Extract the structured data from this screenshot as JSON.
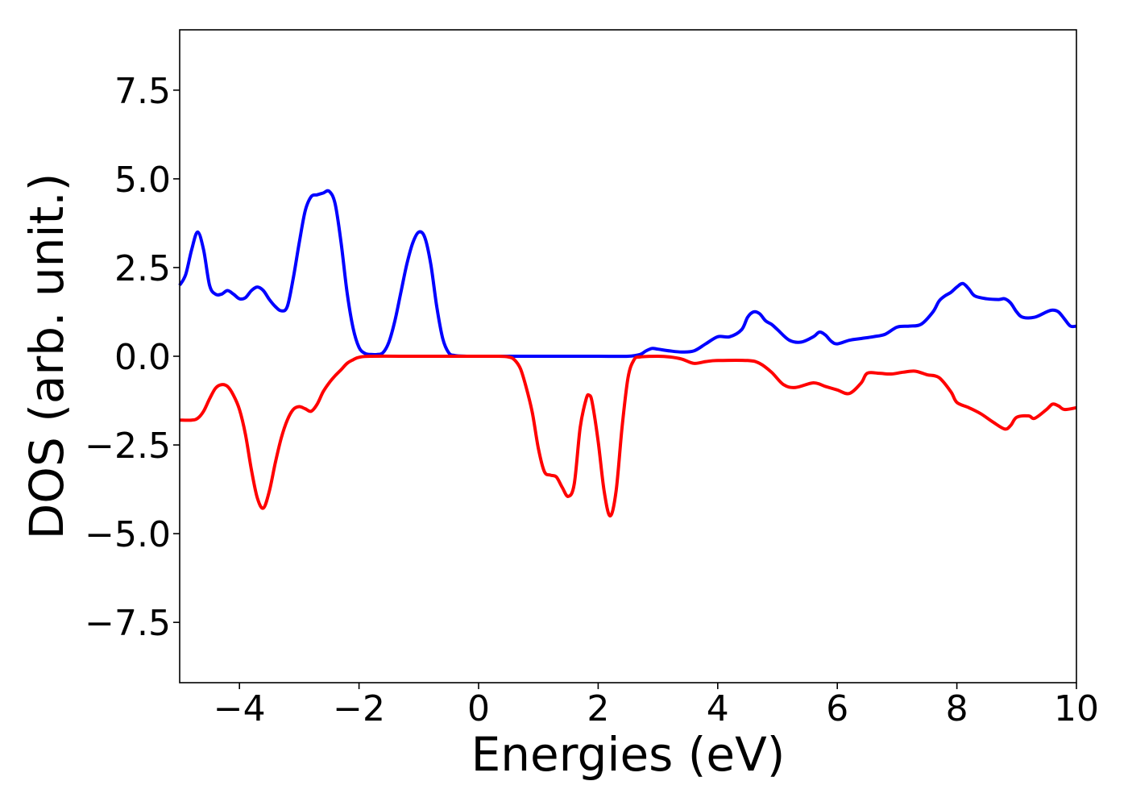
{
  "chart_data": {
    "type": "line",
    "title": "",
    "xlabel": "Energies (eV)",
    "ylabel": "DOS (arb. unit.)",
    "xlim": [
      -5,
      10
    ],
    "ylim": [
      -9.2,
      9.2
    ],
    "xticks": [
      -4,
      -2,
      0,
      2,
      4,
      6,
      8,
      10
    ],
    "xtick_labels": [
      "−4",
      "−2",
      "0",
      "2",
      "4",
      "6",
      "8",
      "10"
    ],
    "yticks": [
      7.5,
      5.0,
      2.5,
      0.0,
      -2.5,
      -5.0,
      -7.5
    ],
    "ytick_labels": [
      "7.5",
      "5.0",
      "2.5",
      "0.0",
      "−2.5",
      "−5.0",
      "−7.5"
    ],
    "grid": false,
    "legend": "none",
    "series": [
      {
        "color": "#0000ff",
        "points": [
          [
            -5.0,
            2.0
          ],
          [
            -4.9,
            2.3
          ],
          [
            -4.8,
            3.0
          ],
          [
            -4.7,
            3.5
          ],
          [
            -4.6,
            3.0
          ],
          [
            -4.5,
            2.0
          ],
          [
            -4.4,
            1.75
          ],
          [
            -4.3,
            1.75
          ],
          [
            -4.2,
            1.85
          ],
          [
            -4.1,
            1.75
          ],
          [
            -4.0,
            1.62
          ],
          [
            -3.9,
            1.65
          ],
          [
            -3.8,
            1.85
          ],
          [
            -3.7,
            1.95
          ],
          [
            -3.6,
            1.85
          ],
          [
            -3.5,
            1.6
          ],
          [
            -3.4,
            1.4
          ],
          [
            -3.3,
            1.28
          ],
          [
            -3.2,
            1.4
          ],
          [
            -3.1,
            2.2
          ],
          [
            -3.0,
            3.2
          ],
          [
            -2.9,
            4.1
          ],
          [
            -2.8,
            4.5
          ],
          [
            -2.7,
            4.55
          ],
          [
            -2.6,
            4.6
          ],
          [
            -2.5,
            4.65
          ],
          [
            -2.4,
            4.3
          ],
          [
            -2.3,
            3.2
          ],
          [
            -2.2,
            1.8
          ],
          [
            -2.1,
            0.8
          ],
          [
            -2.0,
            0.25
          ],
          [
            -1.9,
            0.08
          ],
          [
            -1.8,
            0.05
          ],
          [
            -1.7,
            0.05
          ],
          [
            -1.6,
            0.1
          ],
          [
            -1.5,
            0.4
          ],
          [
            -1.4,
            1.0
          ],
          [
            -1.3,
            1.8
          ],
          [
            -1.2,
            2.6
          ],
          [
            -1.1,
            3.2
          ],
          [
            -1.0,
            3.5
          ],
          [
            -0.9,
            3.35
          ],
          [
            -0.8,
            2.6
          ],
          [
            -0.7,
            1.4
          ],
          [
            -0.6,
            0.5
          ],
          [
            -0.5,
            0.1
          ],
          [
            -0.4,
            0.02
          ],
          [
            -0.2,
            0.0
          ],
          [
            0.0,
            0.0
          ],
          [
            0.5,
            0.0
          ],
          [
            1.0,
            0.0
          ],
          [
            1.5,
            0.0
          ],
          [
            2.0,
            0.0
          ],
          [
            2.5,
            0.0
          ],
          [
            2.7,
            0.05
          ],
          [
            2.8,
            0.15
          ],
          [
            2.9,
            0.22
          ],
          [
            3.0,
            0.2
          ],
          [
            3.2,
            0.15
          ],
          [
            3.4,
            0.12
          ],
          [
            3.6,
            0.15
          ],
          [
            3.8,
            0.35
          ],
          [
            4.0,
            0.55
          ],
          [
            4.2,
            0.55
          ],
          [
            4.4,
            0.75
          ],
          [
            4.5,
            1.1
          ],
          [
            4.6,
            1.25
          ],
          [
            4.7,
            1.2
          ],
          [
            4.8,
            1.0
          ],
          [
            4.9,
            0.9
          ],
          [
            5.0,
            0.75
          ],
          [
            5.2,
            0.45
          ],
          [
            5.4,
            0.4
          ],
          [
            5.6,
            0.55
          ],
          [
            5.7,
            0.68
          ],
          [
            5.8,
            0.6
          ],
          [
            5.9,
            0.42
          ],
          [
            6.0,
            0.35
          ],
          [
            6.2,
            0.45
          ],
          [
            6.4,
            0.5
          ],
          [
            6.6,
            0.55
          ],
          [
            6.8,
            0.62
          ],
          [
            7.0,
            0.82
          ],
          [
            7.2,
            0.85
          ],
          [
            7.4,
            0.9
          ],
          [
            7.6,
            1.25
          ],
          [
            7.7,
            1.55
          ],
          [
            7.8,
            1.7
          ],
          [
            7.9,
            1.8
          ],
          [
            8.0,
            1.95
          ],
          [
            8.1,
            2.05
          ],
          [
            8.2,
            1.9
          ],
          [
            8.3,
            1.7
          ],
          [
            8.5,
            1.62
          ],
          [
            8.7,
            1.6
          ],
          [
            8.8,
            1.62
          ],
          [
            8.9,
            1.5
          ],
          [
            9.0,
            1.25
          ],
          [
            9.1,
            1.1
          ],
          [
            9.3,
            1.1
          ],
          [
            9.5,
            1.25
          ],
          [
            9.6,
            1.3
          ],
          [
            9.7,
            1.25
          ],
          [
            9.8,
            1.05
          ],
          [
            9.9,
            0.85
          ],
          [
            10.0,
            0.85
          ]
        ]
      },
      {
        "color": "#ff0000",
        "points": [
          [
            -5.0,
            -1.8
          ],
          [
            -4.8,
            -1.8
          ],
          [
            -4.7,
            -1.75
          ],
          [
            -4.6,
            -1.55
          ],
          [
            -4.5,
            -1.2
          ],
          [
            -4.4,
            -0.9
          ],
          [
            -4.3,
            -0.8
          ],
          [
            -4.2,
            -0.85
          ],
          [
            -4.1,
            -1.1
          ],
          [
            -4.0,
            -1.5
          ],
          [
            -3.9,
            -2.2
          ],
          [
            -3.8,
            -3.2
          ],
          [
            -3.7,
            -4.0
          ],
          [
            -3.6,
            -4.28
          ],
          [
            -3.5,
            -3.8
          ],
          [
            -3.4,
            -3.0
          ],
          [
            -3.3,
            -2.3
          ],
          [
            -3.2,
            -1.8
          ],
          [
            -3.1,
            -1.5
          ],
          [
            -3.0,
            -1.42
          ],
          [
            -2.9,
            -1.48
          ],
          [
            -2.8,
            -1.55
          ],
          [
            -2.7,
            -1.35
          ],
          [
            -2.6,
            -1.0
          ],
          [
            -2.5,
            -0.75
          ],
          [
            -2.4,
            -0.55
          ],
          [
            -2.3,
            -0.38
          ],
          [
            -2.2,
            -0.2
          ],
          [
            -2.1,
            -0.1
          ],
          [
            -2.0,
            -0.03
          ],
          [
            -1.8,
            0.0
          ],
          [
            -1.0,
            0.0
          ],
          [
            0.0,
            0.0
          ],
          [
            0.3,
            0.0
          ],
          [
            0.5,
            -0.02
          ],
          [
            0.6,
            -0.1
          ],
          [
            0.7,
            -0.35
          ],
          [
            0.8,
            -0.9
          ],
          [
            0.9,
            -1.6
          ],
          [
            1.0,
            -2.6
          ],
          [
            1.1,
            -3.25
          ],
          [
            1.2,
            -3.35
          ],
          [
            1.3,
            -3.4
          ],
          [
            1.4,
            -3.7
          ],
          [
            1.5,
            -3.95
          ],
          [
            1.6,
            -3.6
          ],
          [
            1.7,
            -2.0
          ],
          [
            1.8,
            -1.2
          ],
          [
            1.85,
            -1.1
          ],
          [
            1.9,
            -1.3
          ],
          [
            2.0,
            -2.4
          ],
          [
            2.1,
            -3.8
          ],
          [
            2.2,
            -4.5
          ],
          [
            2.3,
            -3.8
          ],
          [
            2.4,
            -2.0
          ],
          [
            2.5,
            -0.6
          ],
          [
            2.6,
            -0.1
          ],
          [
            2.7,
            -0.02
          ],
          [
            3.0,
            0.0
          ],
          [
            3.2,
            -0.02
          ],
          [
            3.4,
            -0.08
          ],
          [
            3.6,
            -0.2
          ],
          [
            3.8,
            -0.15
          ],
          [
            4.0,
            -0.12
          ],
          [
            4.5,
            -0.12
          ],
          [
            4.7,
            -0.2
          ],
          [
            4.9,
            -0.45
          ],
          [
            5.1,
            -0.8
          ],
          [
            5.3,
            -0.88
          ],
          [
            5.6,
            -0.75
          ],
          [
            5.8,
            -0.85
          ],
          [
            6.0,
            -0.95
          ],
          [
            6.2,
            -1.05
          ],
          [
            6.4,
            -0.75
          ],
          [
            6.5,
            -0.48
          ],
          [
            6.7,
            -0.48
          ],
          [
            6.9,
            -0.5
          ],
          [
            7.1,
            -0.45
          ],
          [
            7.3,
            -0.42
          ],
          [
            7.5,
            -0.52
          ],
          [
            7.7,
            -0.6
          ],
          [
            7.9,
            -1.0
          ],
          [
            8.0,
            -1.3
          ],
          [
            8.2,
            -1.45
          ],
          [
            8.4,
            -1.62
          ],
          [
            8.6,
            -1.85
          ],
          [
            8.8,
            -2.05
          ],
          [
            8.9,
            -1.95
          ],
          [
            9.0,
            -1.72
          ],
          [
            9.2,
            -1.68
          ],
          [
            9.3,
            -1.75
          ],
          [
            9.5,
            -1.5
          ],
          [
            9.6,
            -1.35
          ],
          [
            9.7,
            -1.4
          ],
          [
            9.8,
            -1.5
          ],
          [
            10.0,
            -1.45
          ]
        ]
      }
    ]
  }
}
